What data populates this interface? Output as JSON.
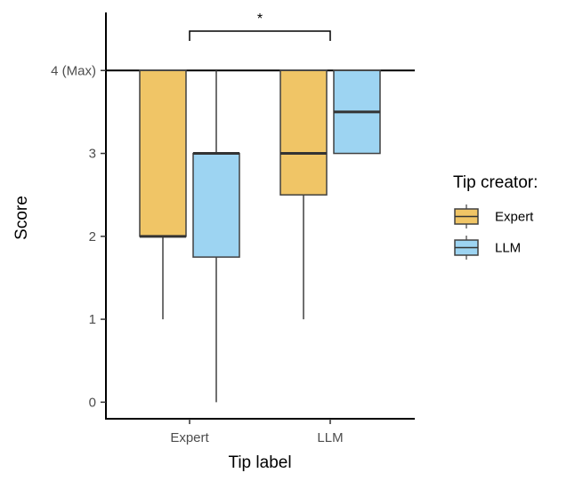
{
  "chart_data": {
    "type": "boxplot",
    "xlabel": "Tip label",
    "ylabel": "Score",
    "ylim": [
      -0.2,
      4.7
    ],
    "yticks": [
      {
        "value": 0,
        "label": "0"
      },
      {
        "value": 1,
        "label": "1"
      },
      {
        "value": 2,
        "label": "2"
      },
      {
        "value": 3,
        "label": "3"
      },
      {
        "value": 4,
        "label": "4 (Max)"
      }
    ],
    "categories": [
      "Expert",
      "LLM"
    ],
    "reference_line": 4,
    "legend": {
      "title": "Tip creator:",
      "position": "right"
    },
    "series": [
      {
        "name": "Expert",
        "color": "#f0c566",
        "boxes": [
          {
            "category": "Expert",
            "min": 1,
            "q1": 2,
            "median": 2,
            "q3": 4,
            "max": 4
          },
          {
            "category": "LLM",
            "min": 1,
            "q1": 2.5,
            "median": 3,
            "q3": 4,
            "max": 4
          }
        ]
      },
      {
        "name": "LLM",
        "color": "#9dd4f2",
        "boxes": [
          {
            "category": "Expert",
            "min": 0,
            "q1": 1.75,
            "median": 3,
            "q3": 3,
            "max": 4
          },
          {
            "category": "LLM",
            "min": 3,
            "q1": 3,
            "median": 3.5,
            "q3": 4,
            "max": 4
          }
        ]
      }
    ],
    "significance": {
      "from": "Expert",
      "to": "LLM",
      "label": "*"
    }
  }
}
